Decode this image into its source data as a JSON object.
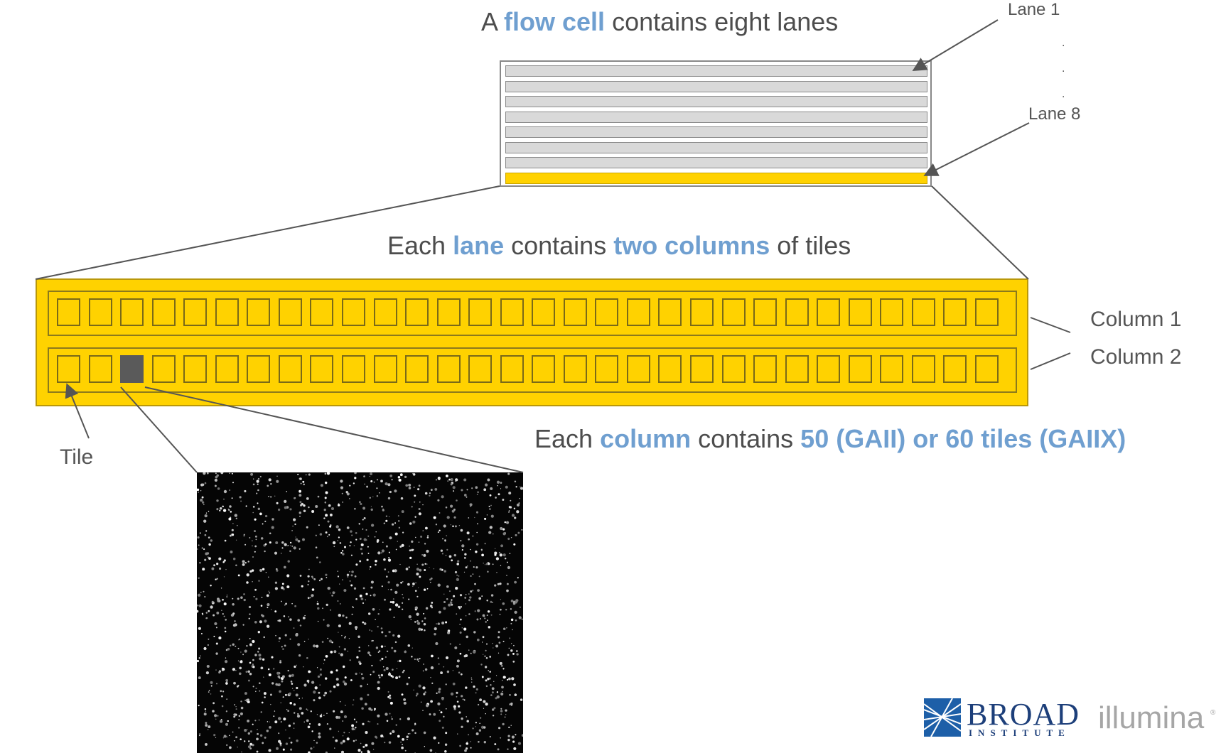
{
  "headings": {
    "flowcell": [
      "A ",
      "flow cell",
      " contains eight lanes"
    ],
    "lane": [
      "Each ",
      "lane",
      " contains ",
      "two columns",
      " of tiles"
    ],
    "column": [
      "Each ",
      "column",
      " contains ",
      "50 (GAII) or 60 tiles (GAIIX)"
    ]
  },
  "callouts": {
    "lane_first": "Lane 1",
    "lane_last": "Lane 8",
    "ellipsis": ".",
    "column_1": "Column 1",
    "column_2": "Column 2",
    "tile": "Tile"
  },
  "flowcell": {
    "lane_count": 8,
    "highlighted_lane": 8
  },
  "lane_detail": {
    "column_count": 2,
    "tiles_shown_per_column": 30,
    "highlighted_tile": {
      "column": 2,
      "position": 3
    }
  },
  "logos": {
    "broad_name": "BROAD",
    "broad_sub": "INSTITUTE",
    "illumina": "illumina",
    "illumina_mark": "®"
  },
  "colors": {
    "accent_text": "#6f9fd0",
    "lane_fill": "#ffd200",
    "lane_grey": "#d9d9d9",
    "selected_tile": "#5a5a5a",
    "body_text": "#4d4d4d",
    "broad_blue": "#1d3f7a"
  }
}
